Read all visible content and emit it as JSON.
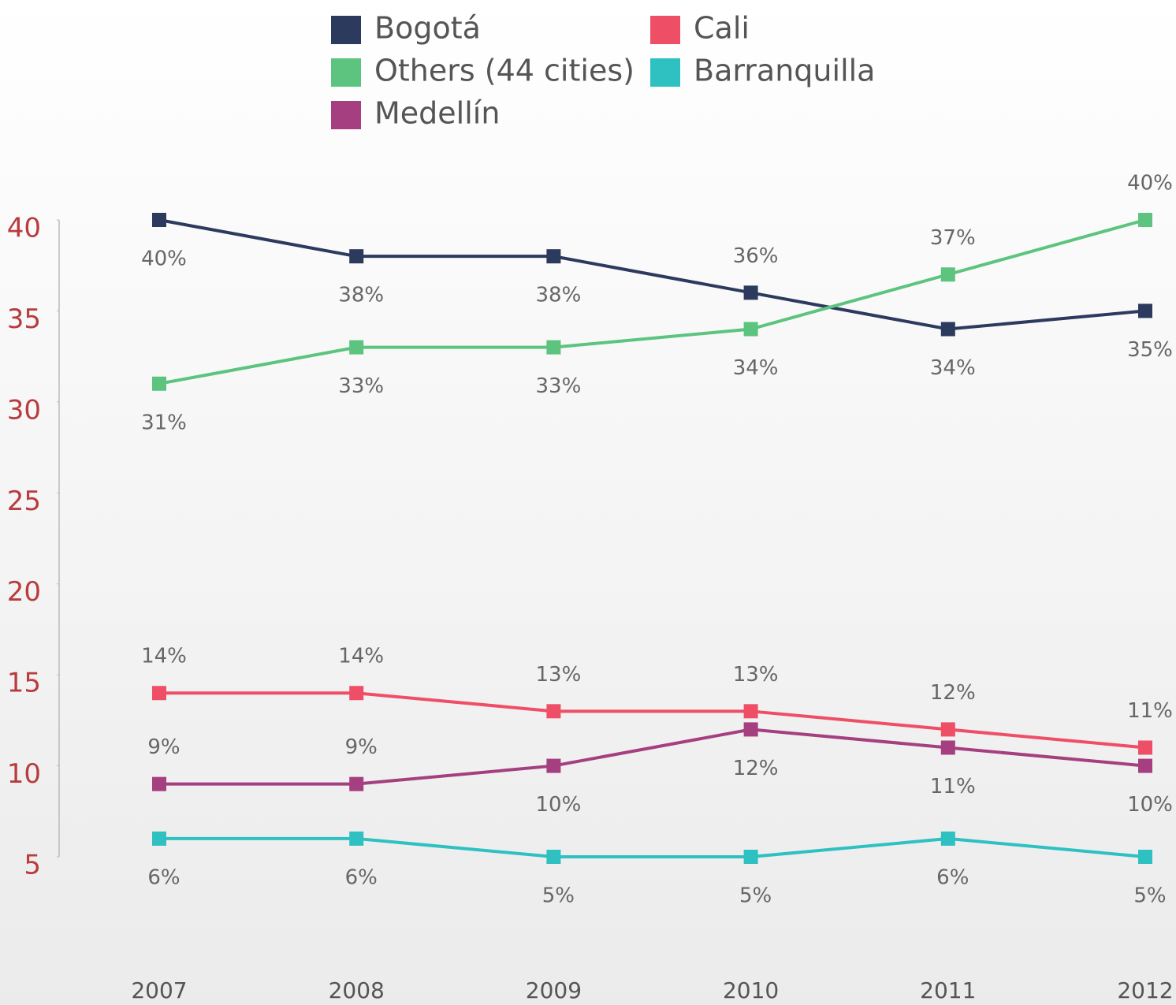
{
  "chart_data": {
    "type": "line",
    "x": [
      2007,
      2008,
      2009,
      2010,
      2011,
      2012
    ],
    "series": [
      {
        "name": "Bogotá",
        "color": "#2c3a5e",
        "values": [
          40,
          38,
          38,
          36,
          34,
          35
        ],
        "value_labels": [
          "40%",
          "38%",
          "38%",
          "36%",
          "34%",
          "35%"
        ]
      },
      {
        "name": "Others (44 cities)",
        "color": "#5cc47f",
        "values": [
          31,
          33,
          33,
          34,
          37,
          40
        ],
        "value_labels": [
          "31%",
          "33%",
          "33%",
          "34%",
          "37%",
          "40%"
        ]
      },
      {
        "name": "Medellín",
        "color": "#a53f80",
        "values": [
          9,
          9,
          10,
          12,
          11,
          10
        ],
        "value_labels": [
          "9%",
          "9%",
          "10%",
          "12%",
          "11%",
          "10%"
        ]
      },
      {
        "name": "Cali",
        "color": "#ef4f66",
        "values": [
          14,
          14,
          13,
          13,
          12,
          11
        ],
        "value_labels": [
          "14%",
          "14%",
          "13%",
          "13%",
          "12%",
          "11%"
        ]
      },
      {
        "name": "Barranquilla",
        "color": "#2fc0c2",
        "values": [
          6,
          6,
          5,
          5,
          6,
          5
        ],
        "value_labels": [
          "6%",
          "6%",
          "5%",
          "5%",
          "6%",
          "5%"
        ]
      }
    ],
    "xlim": [
      2007,
      2012
    ],
    "ylim": [
      5,
      40
    ],
    "yticks": [
      5,
      10,
      15,
      20,
      25,
      30,
      35,
      40
    ],
    "legend": "top",
    "grid": false
  }
}
